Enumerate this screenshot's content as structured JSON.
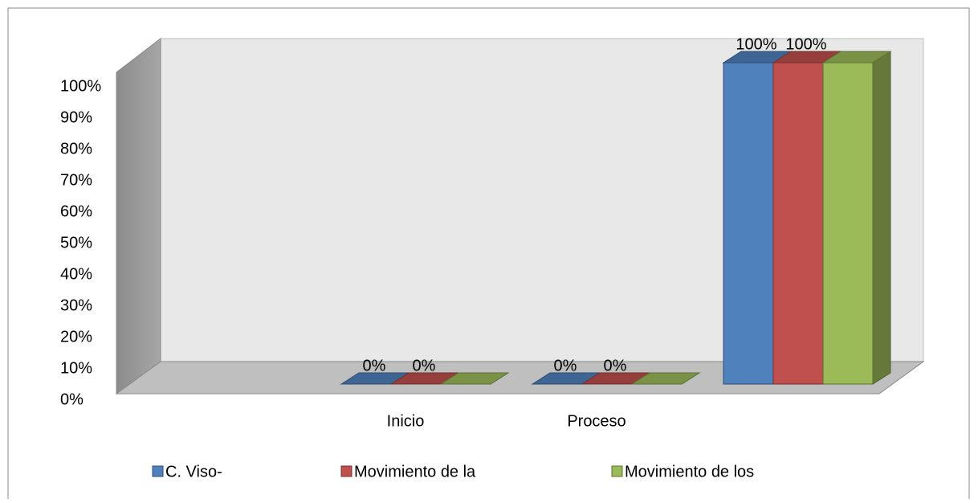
{
  "chart_data": {
    "type": "bar3d",
    "categories": [
      null,
      "Inicio",
      "Proceso",
      null
    ],
    "series": [
      {
        "name": "C. Viso-",
        "color": "#4f81bd",
        "values": [
          null,
          0,
          0,
          100
        ],
        "value_labels": [
          null,
          "0%",
          "0%",
          "100%"
        ]
      },
      {
        "name": "Movimiento de la",
        "color": "#c0504d",
        "values": [
          null,
          0,
          0,
          100
        ],
        "value_labels": [
          null,
          "0%",
          "0%",
          "100%"
        ]
      },
      {
        "name": "Movimiento de los",
        "color": "#9bbb59",
        "values": [
          null,
          0,
          0,
          100
        ],
        "value_labels": [
          null,
          null,
          null,
          null
        ]
      }
    ],
    "ylim": [
      0,
      100
    ],
    "yticks": [
      {
        "value": 0,
        "label": "0%"
      },
      {
        "value": 10,
        "label": "10%"
      },
      {
        "value": 20,
        "label": "20%"
      },
      {
        "value": 30,
        "label": "30%"
      },
      {
        "value": 40,
        "label": "40%"
      },
      {
        "value": 50,
        "label": "50%"
      },
      {
        "value": 60,
        "label": "60%"
      },
      {
        "value": 70,
        "label": "70%"
      },
      {
        "value": 80,
        "label": "80%"
      },
      {
        "value": 90,
        "label": "90%"
      },
      {
        "value": 100,
        "label": "100%"
      }
    ],
    "legend": "bottom"
  }
}
